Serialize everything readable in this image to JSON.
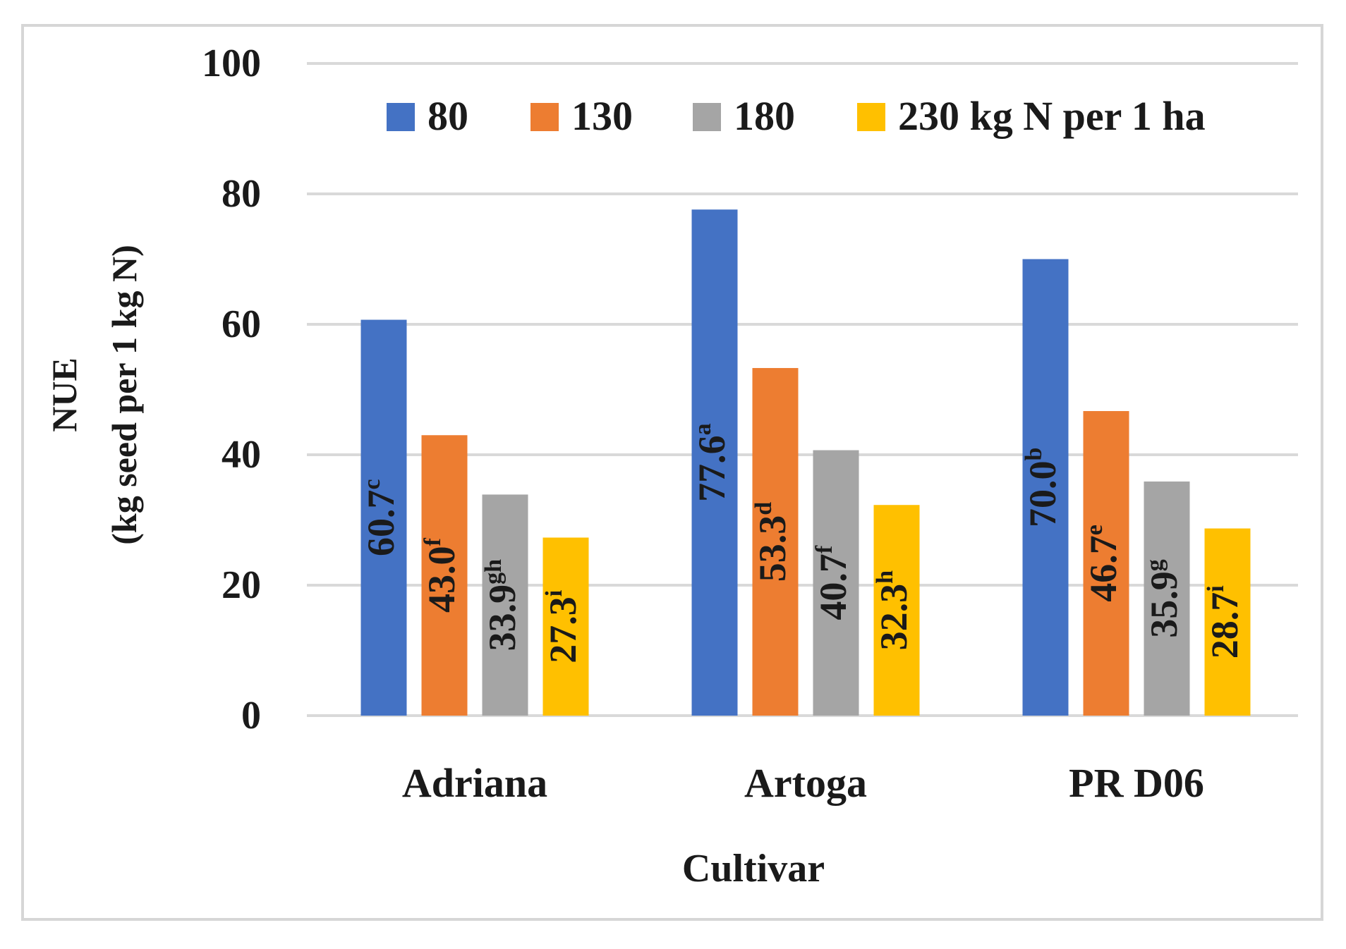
{
  "chart_data": {
    "type": "bar",
    "title": "",
    "xlabel": "Cultivar",
    "ylabel_line1": "NUE",
    "ylabel_line2": "(kg seed per 1 kg N)",
    "categories": [
      "Adriana",
      "Artoga",
      "PR D06"
    ],
    "ylim": [
      0,
      100
    ],
    "yticks": [
      0,
      20,
      40,
      60,
      80,
      100
    ],
    "grid": true,
    "legend_position": "top",
    "series": [
      {
        "name": "80",
        "color": "#4472C4",
        "values": [
          60.7,
          77.6,
          70.0
        ],
        "letters": [
          "c",
          "a",
          "b"
        ]
      },
      {
        "name": "130",
        "color": "#ED7D31",
        "values": [
          43.0,
          53.3,
          46.7
        ],
        "letters": [
          "f",
          "d",
          "e"
        ]
      },
      {
        "name": "180",
        "color": "#A5A5A5",
        "values": [
          33.9,
          40.7,
          35.9
        ],
        "letters": [
          "gh",
          "f",
          "g"
        ]
      },
      {
        "name": "230 kg N per 1 ha",
        "color": "#FFC000",
        "values": [
          27.3,
          32.3,
          28.7
        ],
        "letters": [
          "i",
          "h",
          "i"
        ]
      }
    ]
  }
}
